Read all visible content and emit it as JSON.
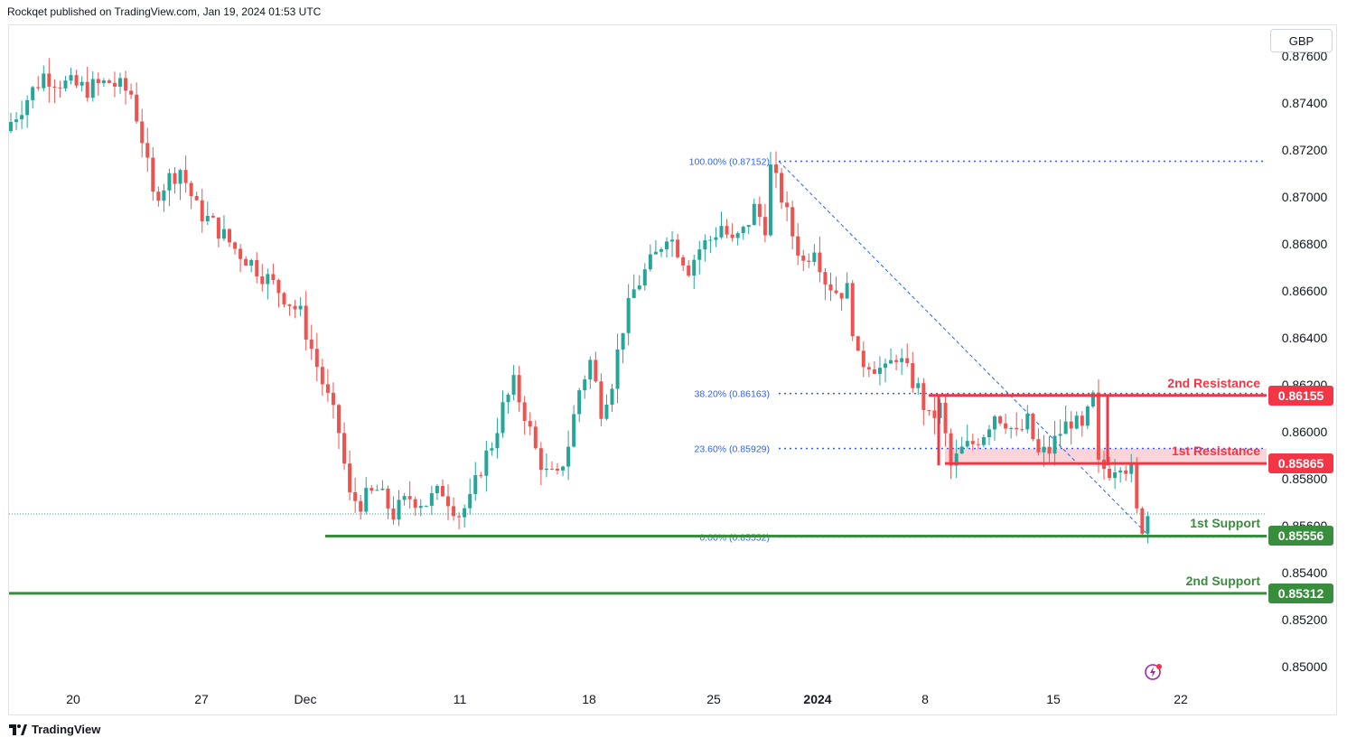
{
  "header": {
    "text": "Rockqet published on TradingView.com, Jan 19, 2024 01:53 UTC"
  },
  "currency": "GBP",
  "footer": {
    "brand": "TradingView"
  },
  "colors": {
    "up": "#26a69a",
    "down": "#ef5350",
    "resistance": "#f23645",
    "support": "#388e3c",
    "fib": "#2962ff",
    "resistance_zone": "#f8c5cb"
  },
  "icons": {
    "spark": "lightning-circle-icon",
    "logo": "tradingview-logo-icon"
  },
  "chart_data": {
    "type": "candlestick",
    "symbol_currency": "GBP",
    "y_ticks": [
      "0.87600",
      "0.87400",
      "0.87200",
      "0.87000",
      "0.86800",
      "0.86600",
      "0.86400",
      "0.86200",
      "0.86000",
      "0.85800",
      "0.85600",
      "0.85400",
      "0.85200",
      "0.85000"
    ],
    "y_range": [
      0.849,
      0.8767
    ],
    "x_ticks": [
      "20",
      "27",
      "Dec",
      "11",
      "18",
      "25",
      "2024",
      "8",
      "15",
      "22"
    ],
    "x_tick_bold": [
      "2024"
    ],
    "levels": [
      {
        "name": "2nd Resistance",
        "value": "0.86155",
        "price": 0.86155,
        "kind": "resistance"
      },
      {
        "name": "1st Resistance",
        "value": "0.85865",
        "price": 0.85865,
        "kind": "resistance"
      },
      {
        "name": "1st Support",
        "value": "0.85556",
        "price": 0.85556,
        "kind": "support"
      },
      {
        "name": "2nd Support",
        "value": "0.85312",
        "price": 0.85312,
        "kind": "support"
      }
    ],
    "fibonacci": [
      {
        "label": "100.00% (0.87152)",
        "price": 0.87152
      },
      {
        "label": "38.20% (0.86163)",
        "price": 0.86163
      },
      {
        "label": "23.60% (0.85929)",
        "price": 0.85929
      },
      {
        "label": "0.00% (0.85552)",
        "price": 0.85552
      }
    ],
    "last_price": 0.8565,
    "trendline": {
      "from": [
        0.87152,
        "Dec 29"
      ],
      "to": [
        0.85552,
        "Jan 19"
      ]
    },
    "close_path": [
      [
        0,
        0.8732
      ],
      [
        6,
        0.8752
      ],
      [
        10,
        0.8748
      ],
      [
        14,
        0.8746
      ],
      [
        18,
        0.8749
      ],
      [
        22,
        0.8744
      ],
      [
        24,
        0.8725
      ],
      [
        26,
        0.87
      ],
      [
        29,
        0.8708
      ],
      [
        31,
        0.8712
      ],
      [
        34,
        0.8695
      ],
      [
        38,
        0.8686
      ],
      [
        41,
        0.8678
      ],
      [
        44,
        0.8672
      ],
      [
        47,
        0.8665
      ],
      [
        50,
        0.8658
      ],
      [
        53,
        0.865
      ],
      [
        56,
        0.8628
      ],
      [
        60,
        0.86
      ],
      [
        62,
        0.8572
      ],
      [
        64,
        0.857
      ],
      [
        67,
        0.8575
      ],
      [
        70,
        0.8565
      ],
      [
        73,
        0.8572
      ],
      [
        76,
        0.857
      ],
      [
        79,
        0.8575
      ],
      [
        82,
        0.8565
      ],
      [
        84,
        0.857
      ],
      [
        86,
        0.8585
      ],
      [
        88,
        0.8595
      ],
      [
        90,
        0.861
      ],
      [
        92,
        0.862
      ],
      [
        94,
        0.8608
      ],
      [
        96,
        0.8592
      ],
      [
        98,
        0.8582
      ],
      [
        100,
        0.858
      ],
      [
        102,
        0.8595
      ],
      [
        104,
        0.8618
      ],
      [
        106,
        0.863
      ],
      [
        108,
        0.861
      ],
      [
        110,
        0.8622
      ],
      [
        112,
        0.8645
      ],
      [
        114,
        0.866
      ],
      [
        116,
        0.8668
      ],
      [
        118,
        0.8675
      ],
      [
        120,
        0.8685
      ],
      [
        122,
        0.8678
      ],
      [
        124,
        0.867
      ],
      [
        126,
        0.8678
      ],
      [
        128,
        0.8682
      ],
      [
        130,
        0.8688
      ],
      [
        132,
        0.868
      ],
      [
        134,
        0.8685
      ],
      [
        136,
        0.8695
      ],
      [
        138,
        0.8688
      ],
      [
        139,
        0.8712
      ],
      [
        141,
        0.87
      ],
      [
        143,
        0.8684
      ],
      [
        145,
        0.8672
      ],
      [
        147,
        0.868
      ],
      [
        149,
        0.8665
      ],
      [
        151,
        0.866
      ],
      [
        153,
        0.866
      ],
      [
        155,
        0.863
      ],
      [
        157,
        0.863
      ],
      [
        160,
        0.8625
      ],
      [
        162,
        0.8633
      ],
      [
        164,
        0.8625
      ],
      [
        166,
        0.8618
      ],
      [
        168,
        0.8605
      ],
      [
        170,
        0.861
      ],
      [
        172,
        0.8585
      ],
      [
        174,
        0.8592
      ],
      [
        176,
        0.8595
      ],
      [
        178,
        0.86
      ],
      [
        180,
        0.8608
      ],
      [
        182,
        0.8605
      ],
      [
        184,
        0.8598
      ],
      [
        186,
        0.8604
      ],
      [
        188,
        0.859
      ],
      [
        190,
        0.8592
      ],
      [
        192,
        0.86
      ],
      [
        194,
        0.8605
      ],
      [
        196,
        0.86
      ],
      [
        198,
        0.8614
      ],
      [
        199,
        0.8585
      ],
      [
        201,
        0.8584
      ],
      [
        203,
        0.8588
      ],
      [
        205,
        0.8583
      ],
      [
        206,
        0.8565
      ],
      [
        207,
        0.856
      ],
      [
        208,
        0.8565
      ]
    ]
  }
}
